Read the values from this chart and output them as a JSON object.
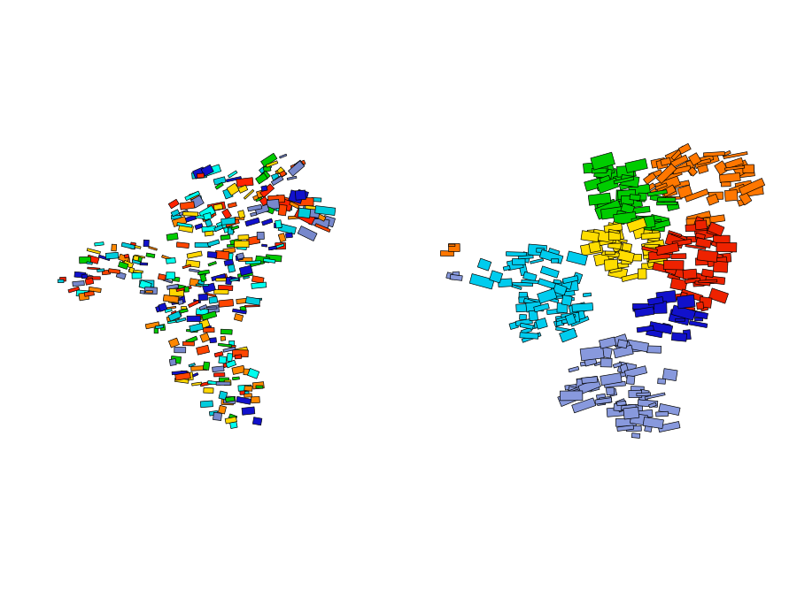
{
  "background_color": "#ffffff",
  "colors_before": [
    "#ff4500",
    "#ffd700",
    "#00bfff",
    "#00cc00",
    "#7b8cde",
    "#ff8c00",
    "#ff0000",
    "#00ffff",
    "#0000cd"
  ],
  "colors_after": {
    "orange": "#ff7700",
    "green": "#00cc00",
    "yellow": "#ffdd00",
    "red": "#ee2200",
    "cyan": "#00ccdd",
    "blue": "#1111cc",
    "purple": "#7788dd"
  },
  "figsize": [
    9.0,
    6.75
  ],
  "dpi": 100,
  "n_parcels_before": 350,
  "n_parcels_after": 180,
  "seed": 42
}
